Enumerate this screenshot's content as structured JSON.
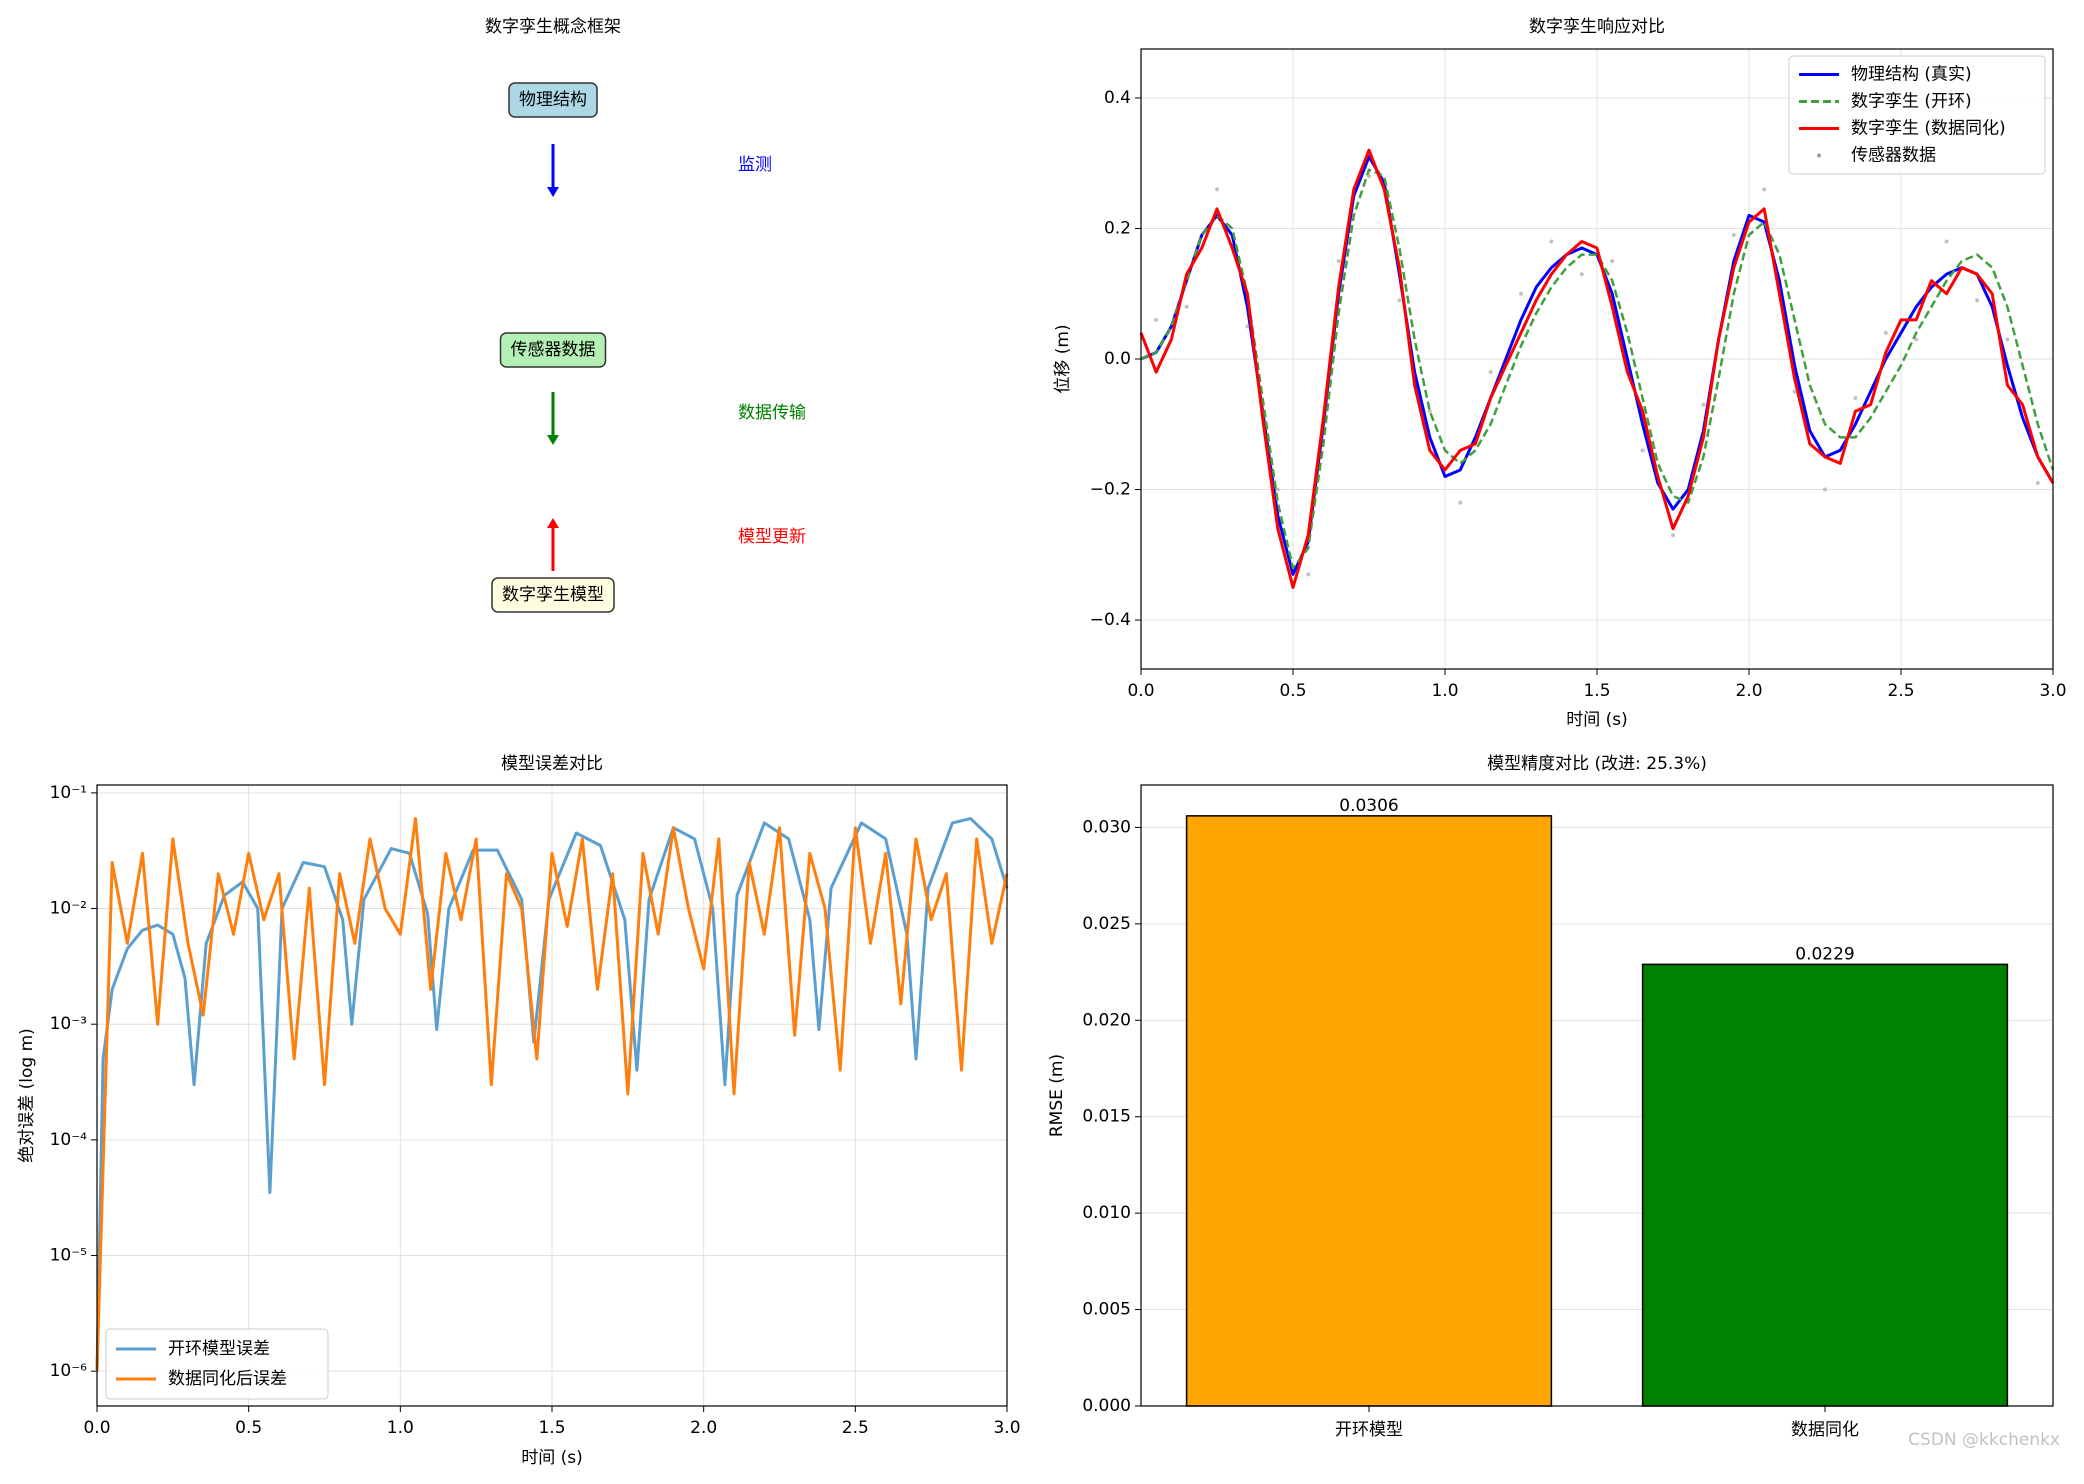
{
  "chart_data": [
    {
      "type": "diagram",
      "title": "数字孪生概念框架",
      "nodes": [
        {
          "label": "物理结构",
          "color": "#add8e6"
        },
        {
          "label": "传感器数据",
          "color": "#b4f0b4"
        },
        {
          "label": "数字孪生模型",
          "color": "#fffde0"
        }
      ],
      "edges": [
        {
          "label": "监测",
          "color": "#0000ff"
        },
        {
          "label": "数据传输",
          "color": "#008000"
        },
        {
          "label": "模型更新",
          "color": "#ff0000"
        }
      ]
    },
    {
      "type": "line",
      "title": "数字孪生响应对比",
      "x_label": "时间 (s)",
      "y_label": "位移 (m)",
      "xlim": [
        0,
        3
      ],
      "ylim": [
        -0.475,
        0.475
      ],
      "xticks": [
        {
          "value": 0,
          "label": "0.0"
        },
        0.5,
        {
          "value": 1,
          "label": "1.0"
        },
        1.5,
        {
          "value": 2,
          "label": "2.0"
        },
        2.5,
        {
          "value": 3,
          "label": "3.0"
        }
      ],
      "yticks": [
        {
          "value": -0.4,
          "label": "−0.4"
        },
        {
          "value": -0.2,
          "label": "−0.2"
        },
        {
          "value": 0,
          "label": "0.0"
        },
        0.2,
        0.4
      ],
      "grid": "both",
      "legend": "upper right",
      "x": [
        0,
        0.05,
        0.1,
        0.15,
        0.2,
        0.25,
        0.3,
        0.35,
        0.4,
        0.45,
        0.5,
        0.55,
        0.6,
        0.65,
        0.7,
        0.75,
        0.8,
        0.85,
        0.9,
        0.95,
        1,
        1.05,
        1.1,
        1.15,
        1.2,
        1.25,
        1.3,
        1.35,
        1.4,
        1.45,
        1.5,
        1.55,
        1.6,
        1.65,
        1.7,
        1.75,
        1.8,
        1.85,
        1.9,
        1.95,
        2,
        2.05,
        2.1,
        2.15,
        2.2,
        2.25,
        2.3,
        2.35,
        2.4,
        2.45,
        2.5,
        2.55,
        2.6,
        2.65,
        2.7,
        2.75,
        2.8,
        2.85,
        2.9,
        2.95,
        3
      ],
      "series": [
        {
          "name": "物理结构 (真实)",
          "color": "#0000ff",
          "style": "solid",
          "values": [
            0,
            0.01,
            0.05,
            0.12,
            0.19,
            0.22,
            0.19,
            0.08,
            -0.08,
            -0.24,
            -0.33,
            -0.28,
            -0.1,
            0.1,
            0.25,
            0.31,
            0.27,
            0.13,
            -0.02,
            -0.12,
            -0.18,
            -0.17,
            -0.12,
            -0.06,
            0,
            0.06,
            0.11,
            0.14,
            0.16,
            0.17,
            0.16,
            0.1,
            0,
            -0.1,
            -0.19,
            -0.23,
            -0.2,
            -0.11,
            0.03,
            0.15,
            0.22,
            0.21,
            0.12,
            -0.01,
            -0.11,
            -0.15,
            -0.14,
            -0.1,
            -0.05,
            0,
            0.04,
            0.08,
            0.11,
            0.13,
            0.14,
            0.13,
            0.08,
            -0.01,
            -0.09,
            -0.15,
            -0.19
          ]
        },
        {
          "name": "数字孪生 (开环)",
          "color": "#3fa03f",
          "style": "dashed",
          "values": [
            0,
            0.01,
            0.05,
            0.12,
            0.19,
            0.22,
            0.2,
            0.1,
            -0.06,
            -0.22,
            -0.32,
            -0.29,
            -0.13,
            0.07,
            0.22,
            0.29,
            0.28,
            0.17,
            0.03,
            -0.08,
            -0.14,
            -0.16,
            -0.14,
            -0.1,
            -0.04,
            0.02,
            0.07,
            0.11,
            0.14,
            0.16,
            0.16,
            0.12,
            0.04,
            -0.06,
            -0.16,
            -0.21,
            -0.22,
            -0.15,
            -0.03,
            0.1,
            0.19,
            0.21,
            0.16,
            0.06,
            -0.04,
            -0.1,
            -0.12,
            -0.12,
            -0.09,
            -0.05,
            -0.01,
            0.04,
            0.08,
            0.12,
            0.15,
            0.16,
            0.14,
            0.08,
            -0.01,
            -0.1,
            -0.17
          ]
        },
        {
          "name": "数字孪生 (数据同化)",
          "color": "#ff0000",
          "style": "solid",
          "values": [
            0.04,
            -0.02,
            0.03,
            0.13,
            0.17,
            0.23,
            0.17,
            0.1,
            -0.09,
            -0.26,
            -0.35,
            -0.27,
            -0.09,
            0.11,
            0.26,
            0.32,
            0.26,
            0.14,
            -0.04,
            -0.14,
            -0.17,
            -0.14,
            -0.13,
            -0.06,
            -0.01,
            0.04,
            0.09,
            0.13,
            0.16,
            0.18,
            0.17,
            0.08,
            -0.02,
            -0.08,
            -0.18,
            -0.26,
            -0.21,
            -0.12,
            0.03,
            0.14,
            0.21,
            0.23,
            0.1,
            -0.03,
            -0.13,
            -0.15,
            -0.16,
            -0.08,
            -0.07,
            0.01,
            0.06,
            0.06,
            0.12,
            0.1,
            0.14,
            0.13,
            0.1,
            -0.04,
            -0.07,
            -0.15,
            -0.19
          ]
        },
        {
          "name": "传感器数据",
          "color": "#999999",
          "style": "dots",
          "x": [
            0.05,
            0.15,
            0.25,
            0.35,
            0.45,
            0.55,
            0.65,
            0.75,
            0.85,
            0.95,
            1.05,
            1.15,
            1.25,
            1.35,
            1.45,
            1.55,
            1.65,
            1.75,
            1.85,
            1.95,
            2.05,
            2.15,
            2.25,
            2.35,
            2.45,
            2.55,
            2.65,
            2.75,
            2.85,
            2.95
          ],
          "values": [
            0.06,
            0.08,
            0.26,
            0.05,
            -0.2,
            -0.33,
            0.15,
            0.28,
            0.09,
            -0.08,
            -0.22,
            -0.02,
            0.1,
            0.18,
            0.13,
            0.15,
            -0.14,
            -0.27,
            -0.07,
            0.19,
            0.26,
            -0.05,
            -0.2,
            -0.06,
            0.04,
            0.03,
            0.18,
            0.09,
            0.03,
            -0.19
          ]
        }
      ]
    },
    {
      "type": "line",
      "title": "模型误差对比",
      "x_label": "时间 (s)",
      "y_label": "绝对误差 (log m)",
      "xlim": [
        0,
        3
      ],
      "ylim": [
        5e-07,
        0.117
      ],
      "ylog": true,
      "xticks": [
        {
          "value": 0,
          "label": "0.0"
        },
        0.5,
        {
          "value": 1,
          "label": "1.0"
        },
        1.5,
        {
          "value": 2,
          "label": "2.0"
        },
        2.5,
        {
          "value": 3,
          "label": "3.0"
        }
      ],
      "yticks": [
        {
          "value": 1e-06,
          "label": "10⁻⁶"
        },
        {
          "value": 1e-05,
          "label": "10⁻⁵"
        },
        {
          "value": 0.0001,
          "label": "10⁻⁴"
        },
        {
          "value": 0.001,
          "label": "10⁻³"
        },
        {
          "value": 0.01,
          "label": "10⁻²"
        },
        {
          "value": 0.1,
          "label": "10⁻¹"
        }
      ],
      "grid": "both",
      "legend": "lower left",
      "series": [
        {
          "name": "开环模型误差",
          "color": "#5a9fd0",
          "style": "solid",
          "x": [
            0,
            0.02,
            0.05,
            0.1,
            0.15,
            0.2,
            0.25,
            0.29,
            0.32,
            0.36,
            0.42,
            0.48,
            0.53,
            0.57,
            0.61,
            0.68,
            0.75,
            0.81,
            0.84,
            0.88,
            0.97,
            1.03,
            1.09,
            1.12,
            1.16,
            1.24,
            1.32,
            1.4,
            1.44,
            1.49,
            1.58,
            1.66,
            1.74,
            1.78,
            1.82,
            1.9,
            1.97,
            2.03,
            2.07,
            2.11,
            2.2,
            2.28,
            2.35,
            2.38,
            2.42,
            2.52,
            2.6,
            2.67,
            2.7,
            2.74,
            2.82,
            2.88,
            2.95,
            3
          ],
          "values": [
            1e-06,
            0.0005,
            0.002,
            0.0045,
            0.0065,
            0.0072,
            0.006,
            0.0025,
            0.0003,
            0.005,
            0.013,
            0.017,
            0.01,
            3.5e-05,
            0.01,
            0.025,
            0.023,
            0.008,
            0.001,
            0.012,
            0.033,
            0.03,
            0.009,
            0.0009,
            0.01,
            0.032,
            0.032,
            0.012,
            0.0007,
            0.012,
            0.045,
            0.035,
            0.008,
            0.0004,
            0.012,
            0.05,
            0.04,
            0.01,
            0.0003,
            0.013,
            0.055,
            0.04,
            0.008,
            0.0009,
            0.015,
            0.055,
            0.04,
            0.006,
            0.0005,
            0.015,
            0.055,
            0.06,
            0.04,
            0.015
          ]
        },
        {
          "name": "数据同化后误差",
          "color": "#ff7f0e",
          "style": "solid",
          "x": [
            0,
            0.05,
            0.1,
            0.15,
            0.2,
            0.25,
            0.3,
            0.35,
            0.4,
            0.45,
            0.5,
            0.55,
            0.6,
            0.65,
            0.7,
            0.75,
            0.8,
            0.85,
            0.9,
            0.95,
            1,
            1.05,
            1.1,
            1.15,
            1.2,
            1.25,
            1.3,
            1.35,
            1.4,
            1.45,
            1.5,
            1.55,
            1.6,
            1.65,
            1.7,
            1.75,
            1.8,
            1.85,
            1.9,
            1.95,
            2,
            2.05,
            2.1,
            2.15,
            2.2,
            2.25,
            2.3,
            2.35,
            2.4,
            2.45,
            2.5,
            2.55,
            2.6,
            2.65,
            2.7,
            2.75,
            2.8,
            2.85,
            2.9,
            2.95,
            3
          ],
          "values": [
            1e-06,
            0.025,
            0.005,
            0.03,
            0.001,
            0.04,
            0.005,
            0.0012,
            0.02,
            0.006,
            0.03,
            0.008,
            0.02,
            0.0005,
            0.015,
            0.0003,
            0.02,
            0.005,
            0.04,
            0.01,
            0.006,
            0.06,
            0.002,
            0.03,
            0.008,
            0.04,
            0.0003,
            0.02,
            0.01,
            0.0005,
            0.03,
            0.007,
            0.04,
            0.002,
            0.02,
            0.00025,
            0.03,
            0.006,
            0.05,
            0.01,
            0.003,
            0.04,
            0.00025,
            0.025,
            0.006,
            0.05,
            0.0008,
            0.03,
            0.01,
            0.0004,
            0.05,
            0.005,
            0.03,
            0.0015,
            0.04,
            0.008,
            0.02,
            0.0004,
            0.04,
            0.005,
            0.02
          ]
        }
      ]
    },
    {
      "type": "bar",
      "title": "模型精度对比 (改进: 25.3%)",
      "y_label": "RMSE (m)",
      "categories": [
        "开环模型",
        "数据同化"
      ],
      "values": [
        0.0306,
        0.0229
      ],
      "colors": [
        "#ffa500",
        "#008000"
      ],
      "ylim": [
        0,
        0.0322
      ],
      "yticks": [
        {
          "value": 0,
          "label": "0.000"
        },
        {
          "value": 0.005,
          "label": "0.005"
        },
        {
          "value": 0.01,
          "label": "0.010"
        },
        {
          "value": 0.015,
          "label": "0.015"
        },
        {
          "value": 0.02,
          "label": "0.020"
        },
        {
          "value": 0.025,
          "label": "0.025"
        },
        {
          "value": 0.03,
          "label": "0.030"
        }
      ],
      "grid": "y"
    }
  ],
  "watermark": "CSDN @kkchenkx"
}
